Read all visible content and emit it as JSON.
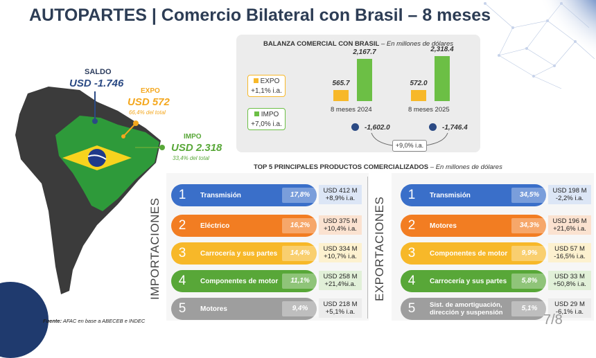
{
  "title": "AUTOPARTES | Comercio Bilateral con Brasil – 8 meses",
  "map": {
    "saldo_label": "SALDO",
    "saldo_value": "USD -1.746",
    "expo_label": "EXPO",
    "expo_value": "USD 572",
    "expo_share": "66,4% del total",
    "impo_label": "IMPO",
    "impo_value": "USD 2.318",
    "impo_share": "33,4% del total"
  },
  "balanza": {
    "title": "BALANZA COMERCIAL CON BRASIL",
    "subtitle": "– En millones de dólares",
    "legend_expo": "EXPO",
    "legend_expo_change": "+1,1% i.a.",
    "legend_impo": "IMPO",
    "legend_impo_change": "+7,0% i.a.",
    "change_saldo": "+9,0% i.a.",
    "periods": [
      "8 meses 2024",
      "8 meses 2025"
    ],
    "expo_values": [
      "565.7",
      "572.0"
    ],
    "impo_values": [
      "2,167.7",
      "2,318.4"
    ],
    "saldo_values": [
      "-1,602.0",
      "-1,746.4"
    ]
  },
  "chart_data": {
    "type": "bar",
    "categories": [
      "8 meses 2024",
      "8 meses 2025"
    ],
    "series": [
      {
        "name": "EXPO",
        "values": [
          565.7,
          572.0
        ]
      },
      {
        "name": "IMPO",
        "values": [
          2167.7,
          2318.4
        ]
      }
    ],
    "saldo": [
      -1602.0,
      -1746.4
    ],
    "title": "BALANZA COMERCIAL CON BRASIL",
    "subtitle": "– En millones de dólares",
    "ylim": [
      0,
      2500
    ],
    "grid": false,
    "legend": "left"
  },
  "top5": {
    "title": "TOP 5 PRINCIPALES PRODUCTOS COMERCIALIZADOS",
    "subtitle": "– En millones de dólares",
    "imp_label": "IMPORTACIONES",
    "exp_label": "EXPORTACIONES",
    "importaciones": [
      {
        "num": "1",
        "name": "Transmisión",
        "pct": "17,8%",
        "usd": "USD 412 M",
        "ia": "+8,9% i.a."
      },
      {
        "num": "2",
        "name": "Eléctrico",
        "pct": "16,2%",
        "usd": "USD 375 M",
        "ia": "+10,4% i.a."
      },
      {
        "num": "3",
        "name": "Carrocería y sus partes",
        "pct": "14,4%",
        "usd": "USD 334 M",
        "ia": "+10,7% i.a."
      },
      {
        "num": "4",
        "name": "Componentes de motor",
        "pct": "11,1%",
        "usd": "USD 258 M",
        "ia": "+21,4%i.a."
      },
      {
        "num": "5",
        "name": "Motores",
        "pct": "9,4%",
        "usd": "USD 218 M",
        "ia": "+5,1% i.a."
      }
    ],
    "exportaciones": [
      {
        "num": "1",
        "name": "Transmisión",
        "pct": "34,5%",
        "usd": "USD 198 M",
        "ia": "-2,2% i.a."
      },
      {
        "num": "2",
        "name": "Motores",
        "pct": "34,3%",
        "usd": "USD 196 M",
        "ia": "+21,6% i.a."
      },
      {
        "num": "3",
        "name": "Componentes de motor",
        "pct": "9,9%",
        "usd": "USD 57 M",
        "ia": "-16,5% i.a."
      },
      {
        "num": "4",
        "name": "Carrocería y sus partes",
        "pct": "5,8%",
        "usd": "USD 33 M",
        "ia": "+50,8% i.a."
      },
      {
        "num": "5",
        "name": "Sist. de amortiguación, dirección y suspensión",
        "pct": "5,1%",
        "usd": "USD 29 M",
        "ia": "-6,1% i.a."
      }
    ]
  },
  "colors": [
    "#3a6fc9",
    "#f27d22",
    "#f7b829",
    "#58a738",
    "#9e9e9e"
  ],
  "source": {
    "label": "Fuente:",
    "text": " AFAC en base a ABECEB e INDEC"
  },
  "page_number": "7/8"
}
